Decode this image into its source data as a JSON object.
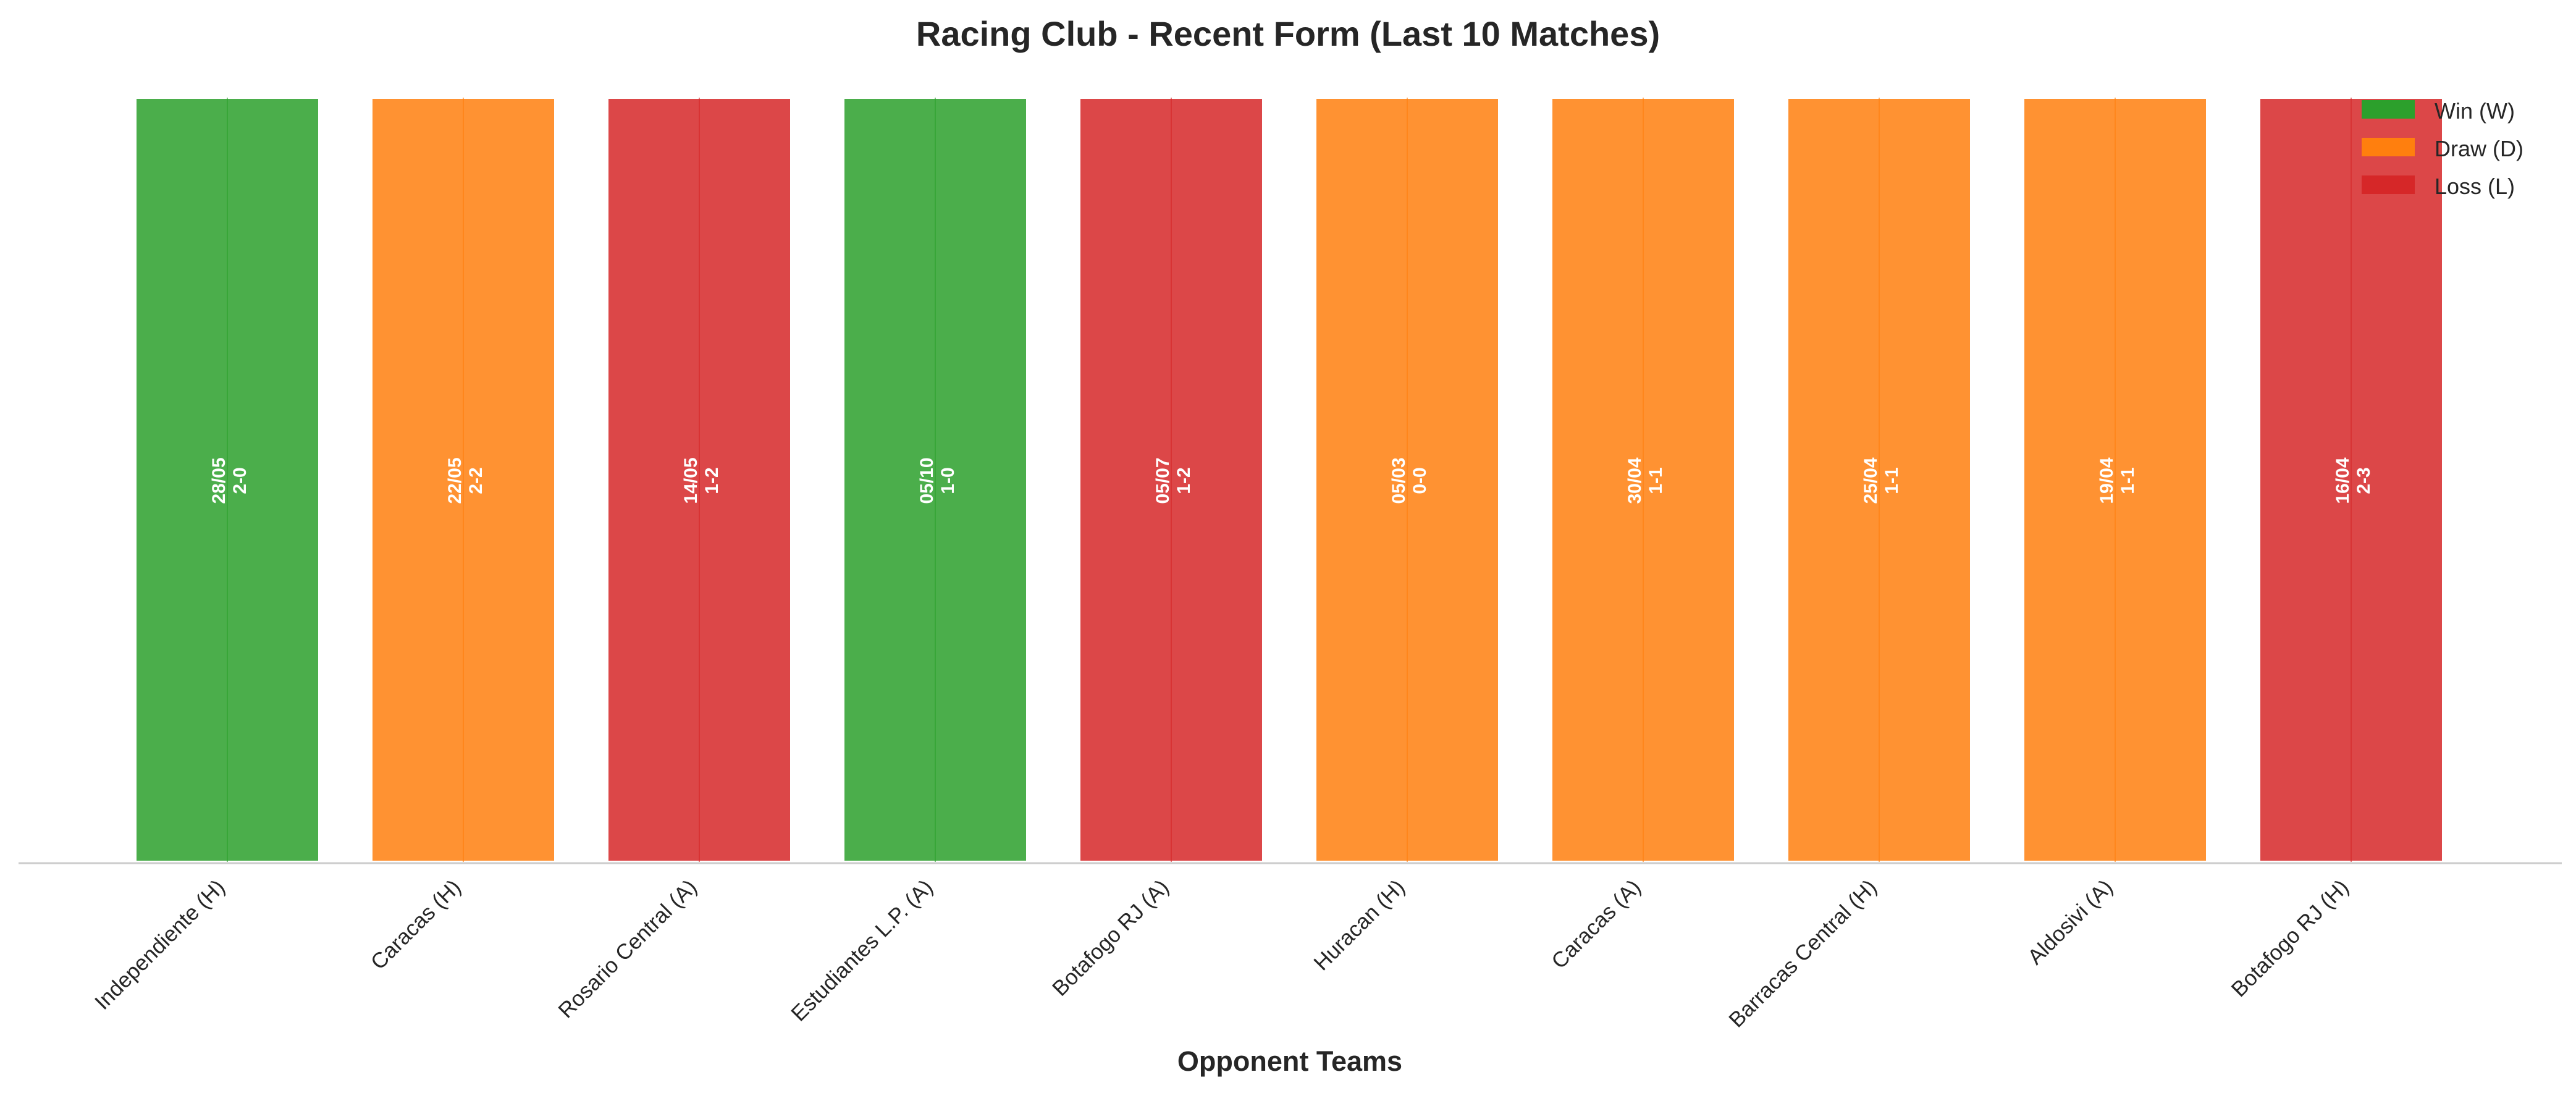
{
  "chart_data": {
    "type": "bar",
    "title": "Racing Club - Recent Form (Last 10 Matches)",
    "xlabel": "Opponent Teams",
    "ylabel": "",
    "ylim": [
      0,
      1
    ],
    "grid": false,
    "legend_position": "top-right",
    "legend": [
      {
        "key": "W",
        "label": "Win (W)",
        "color": "#2ca02c"
      },
      {
        "key": "D",
        "label": "Draw (D)",
        "color": "#ff7f0e"
      },
      {
        "key": "L",
        "label": "Loss (L)",
        "color": "#d62728"
      }
    ],
    "categories": [
      "Independiente (H)",
      "Caracas (H)",
      "Rosario Central (A)",
      "Estudiantes L.P. (A)",
      "Botafogo RJ (A)",
      "Huracan (H)",
      "Caracas (A)",
      "Barracas Central (H)",
      "Aldosivi (A)",
      "Botafogo RJ (H)"
    ],
    "values": [
      1,
      1,
      1,
      1,
      1,
      1,
      1,
      1,
      1,
      1
    ],
    "results": [
      "W",
      "D",
      "L",
      "W",
      "L",
      "D",
      "D",
      "D",
      "D",
      "L"
    ],
    "dates": [
      "28/05",
      "22/05",
      "14/05",
      "05/10",
      "05/07",
      "05/03",
      "30/04",
      "25/04",
      "19/04",
      "16/04"
    ],
    "scores": [
      "2-0",
      "2-2",
      "1-2",
      "1-0",
      "1-2",
      "0-0",
      "1-1",
      "1-1",
      "1-1",
      "2-3"
    ]
  }
}
